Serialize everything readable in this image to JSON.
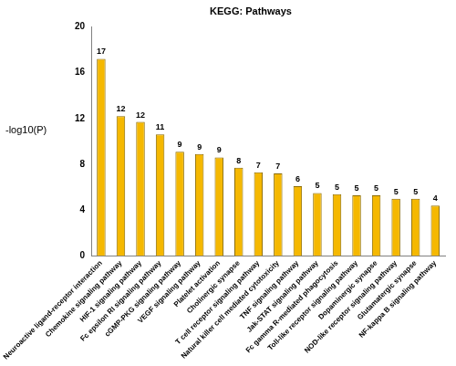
{
  "chart_data": {
    "type": "bar",
    "title": "KEGG: Pathways",
    "y_label": "-log10(P)",
    "categories": [
      "Neuroactive ligand-receptor interaction",
      "Chemokine signaling pathway",
      "HIF-1 signaling pathway",
      "Fc epsilon RI signaling pathway",
      "cGMP-PKG signaling pathway",
      "VEGF signaling pathway",
      "Platelet activation",
      "Cholinergic synapse",
      "T cell receptor signaling pathway",
      "Natural killer cell mediated cytotoxicity",
      "TNF signaling pathway",
      "Jak-STAT signaling pathway",
      "Fc gamma R-mediated phagocytosis",
      "Toll-like receptor signaling pathway",
      "Dopaminergic synapse",
      "NOD-like receptor signaling pathway",
      "Glutamatergic synapse",
      "NF-kappa B signaling pathway"
    ],
    "values": [
      17.2,
      12.2,
      11.7,
      10.6,
      9.1,
      8.9,
      8.6,
      7.7,
      7.3,
      7.2,
      6.1,
      5.5,
      5.4,
      5.3,
      5.3,
      5.0,
      5.0,
      4.4
    ],
    "counts": [
      17,
      12,
      12,
      11,
      9,
      9,
      9,
      8,
      7,
      7,
      6,
      5,
      5,
      5,
      5,
      5,
      5,
      4
    ],
    "color": "#f5b800",
    "ylim": [
      0,
      20
    ],
    "yticks": [
      0,
      4,
      8,
      12,
      16,
      20
    ],
    "grid": false
  }
}
